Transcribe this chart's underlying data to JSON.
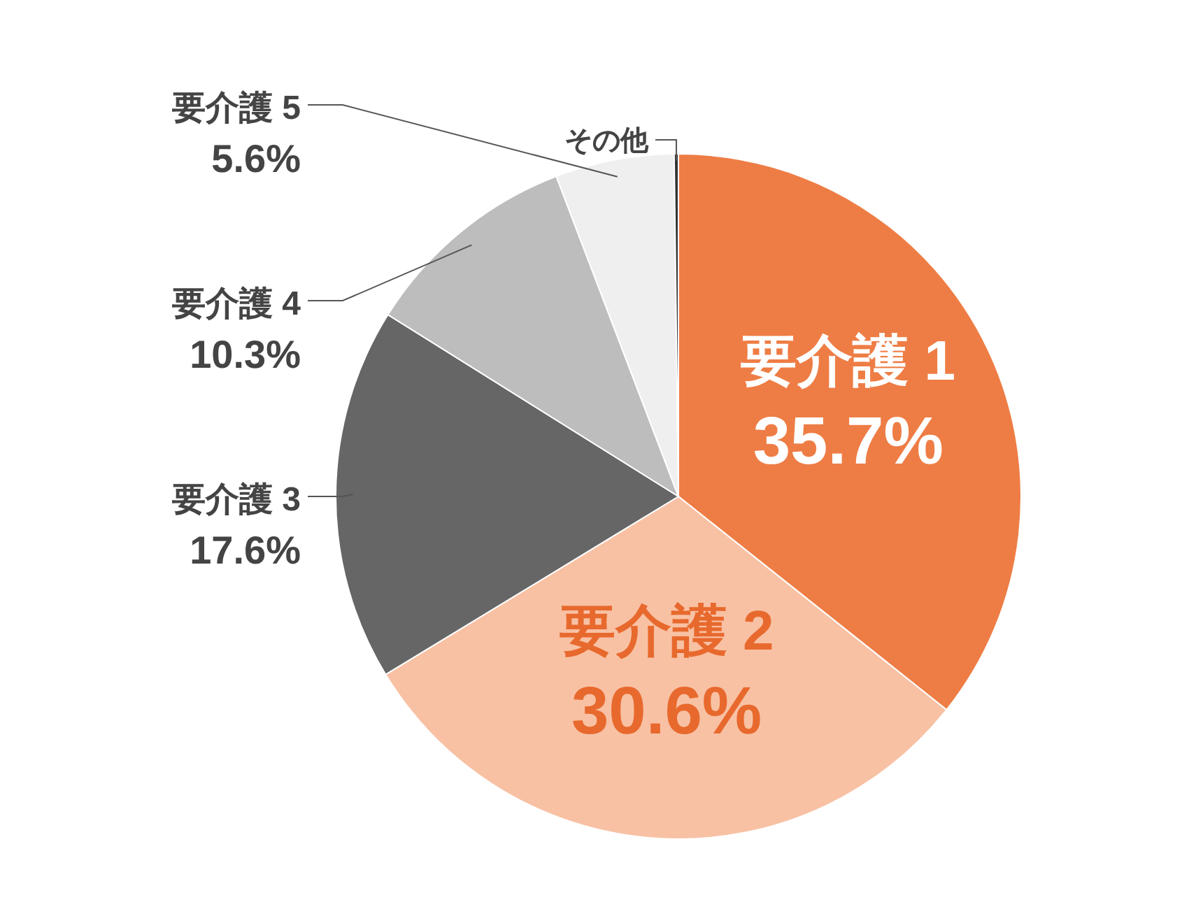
{
  "chart_data": {
    "type": "pie",
    "categories": [
      "要介護 1",
      "要介護 2",
      "要介護 3",
      "要介護 4",
      "要介護 5",
      "その他"
    ],
    "values": [
      35.7,
      30.6,
      17.6,
      10.3,
      5.6,
      0.2
    ],
    "colors": [
      "#ee7d45",
      "#f8c1a4",
      "#666666",
      "#bdbdbd",
      "#efefef",
      "#333333"
    ],
    "value_labels": [
      "35.7%",
      "30.6%",
      "17.6%",
      "10.3%",
      "5.6%",
      null
    ]
  }
}
